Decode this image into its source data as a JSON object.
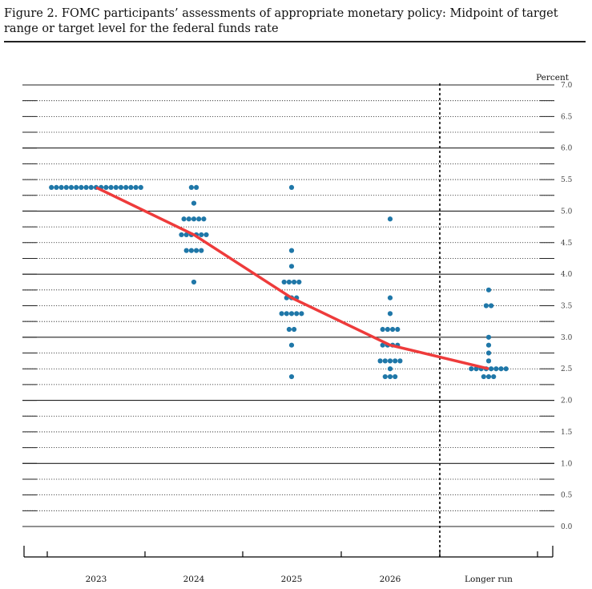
{
  "figure": {
    "caption": "Figure 2. FOMC participants’ assessments of appropriate monetary policy: Midpoint of target range or target level for the federal funds rate"
  },
  "chart_data": {
    "type": "scatter",
    "title": "",
    "xlabel": "",
    "ylabel": "Percent",
    "ylim": [
      0.0,
      7.0
    ],
    "yticks": [
      "0.0",
      "0.5",
      "1.0",
      "1.5",
      "2.0",
      "2.5",
      "3.0",
      "3.5",
      "4.0",
      "4.5",
      "5.0",
      "5.5",
      "6.0",
      "6.5",
      "7.0"
    ],
    "categories": [
      "2023",
      "2024",
      "2025",
      "2026",
      "Longer run"
    ],
    "grid": true,
    "colors": {
      "dots": "#1f77a8",
      "median_line": "#ee3b3b",
      "grid": "#222222"
    },
    "dots": [
      {
        "category": "2023",
        "points": [
          {
            "y": 5.375,
            "count": 19
          }
        ]
      },
      {
        "category": "2024",
        "points": [
          {
            "y": 5.375,
            "count": 2
          },
          {
            "y": 5.125,
            "count": 1
          },
          {
            "y": 4.875,
            "count": 5
          },
          {
            "y": 4.625,
            "count": 6
          },
          {
            "y": 4.375,
            "count": 4
          },
          {
            "y": 3.875,
            "count": 1
          }
        ]
      },
      {
        "category": "2025",
        "points": [
          {
            "y": 5.375,
            "count": 1
          },
          {
            "y": 4.375,
            "count": 1
          },
          {
            "y": 4.125,
            "count": 1
          },
          {
            "y": 3.875,
            "count": 4
          },
          {
            "y": 3.625,
            "count": 3
          },
          {
            "y": 3.375,
            "count": 5
          },
          {
            "y": 3.125,
            "count": 2
          },
          {
            "y": 2.875,
            "count": 1
          },
          {
            "y": 2.375,
            "count": 1
          }
        ]
      },
      {
        "category": "2026",
        "points": [
          {
            "y": 4.875,
            "count": 1
          },
          {
            "y": 3.625,
            "count": 1
          },
          {
            "y": 3.375,
            "count": 1
          },
          {
            "y": 3.125,
            "count": 4
          },
          {
            "y": 2.875,
            "count": 4
          },
          {
            "y": 2.625,
            "count": 5
          },
          {
            "y": 2.5,
            "count": 1
          },
          {
            "y": 2.375,
            "count": 3
          }
        ]
      },
      {
        "category": "Longer run",
        "points": [
          {
            "y": 3.75,
            "count": 1
          },
          {
            "y": 3.5,
            "count": 2
          },
          {
            "y": 3.0,
            "count": 1
          },
          {
            "y": 2.875,
            "count": 1
          },
          {
            "y": 2.75,
            "count": 1
          },
          {
            "y": 2.625,
            "count": 1
          },
          {
            "y": 2.5,
            "count": 8
          },
          {
            "y": 2.375,
            "count": 3
          }
        ]
      }
    ],
    "median_line": [
      {
        "category": "2023",
        "y": 5.375
      },
      {
        "category": "2024",
        "y": 4.625
      },
      {
        "category": "2025",
        "y": 3.625
      },
      {
        "category": "2026",
        "y": 2.875
      },
      {
        "category": "Longer run",
        "y": 2.5
      }
    ]
  }
}
